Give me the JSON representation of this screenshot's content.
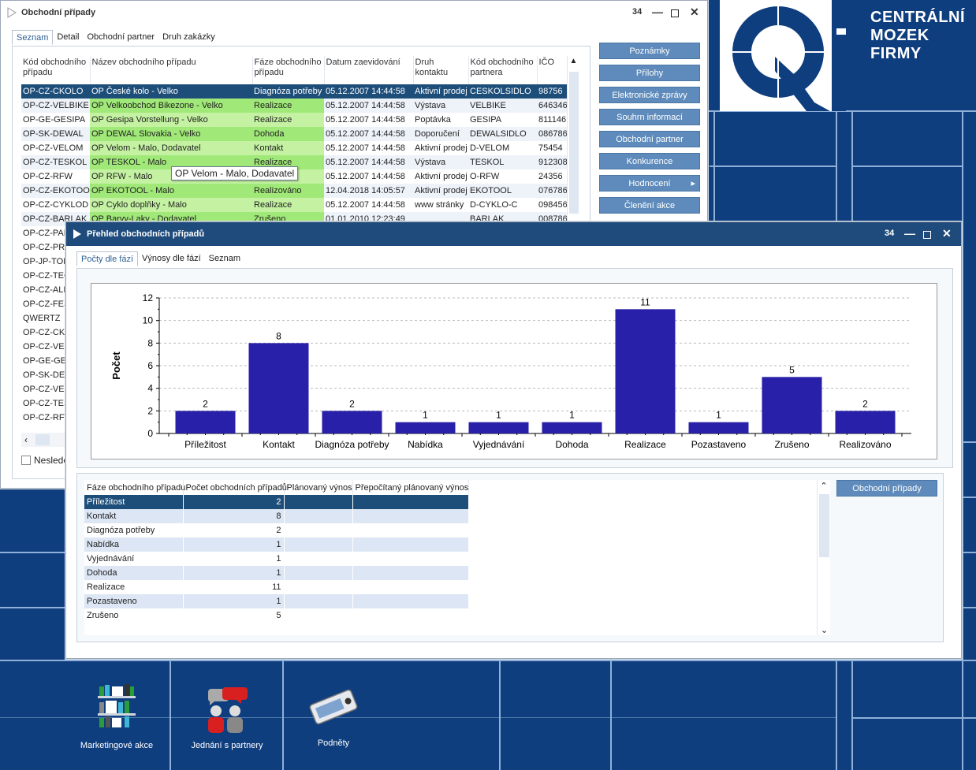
{
  "brand": {
    "line1": "CENTRÁLNÍ",
    "line2": "MOZEK",
    "line3": "FIRMY"
  },
  "win1": {
    "title": "Obchodní případy",
    "counter": "34",
    "tabs": [
      "Seznam",
      "Detail",
      "Obchodní partner",
      "Druh zakázky"
    ],
    "columns": [
      "Kód obchodního případu",
      "Název obchodního případu",
      "Fáze obchodního případu",
      "Datum zaevidování",
      "Druh kontaktu",
      "Kód obchodního partnera",
      "IČO"
    ],
    "rows": [
      [
        "OP-CZ-CKOLO",
        "OP České kolo - Velko",
        "Diagnóza potřeby",
        "05.12.2007 14:44:58",
        "Aktivní prodej",
        "CESKOLSIDLO",
        "98756"
      ],
      [
        "OP-CZ-VELBIKE",
        "OP Velkoobchod Bikezone - Velko",
        "Realizace",
        "05.12.2007 14:44:58",
        "Výstava",
        "VELBIKE",
        "646346"
      ],
      [
        "OP-GE-GESIPA",
        "OP Gesipa Vorstellung - Velko",
        "Realizace",
        "05.12.2007 14:44:58",
        "Poptávka",
        "GESIPA",
        "811146"
      ],
      [
        "OP-SK-DEWAL",
        "OP DEWAL Slovakia - Velko",
        "Dohoda",
        "05.12.2007 14:44:58",
        "Doporučení",
        "DEWALSIDLO",
        "086786"
      ],
      [
        "OP-CZ-VELOM",
        "OP Velom - Malo, Dodavatel",
        "Kontakt",
        "05.12.2007 14:44:58",
        "Aktivní prodej",
        "D-VELOM",
        "75454"
      ],
      [
        "OP-CZ-TESKOL",
        "OP TESKOL - Malo",
        "Realizace",
        "05.12.2007 14:44:58",
        "Výstava",
        "TESKOL",
        "912308"
      ],
      [
        "OP-CZ-RFW",
        "OP RFW - Malo",
        "",
        "05.12.2007 14:44:58",
        "Aktivní prodej",
        "O-RFW",
        "24356"
      ],
      [
        "OP-CZ-EKOTOOL",
        "OP EKOTOOL - Malo",
        "Realizováno",
        "12.04.2018 14:05:57",
        "Aktivní prodej",
        "EKOTOOL",
        "076786"
      ],
      [
        "OP-CZ-CYKLOD",
        "OP Cyklo doplňky - Malo",
        "Realizace",
        "05.12.2007 14:44:58",
        "www stránky",
        "D-CYKLO-C",
        "098456"
      ],
      [
        "OP-CZ-BARLAK",
        "OP Barvy-Laky - Dodavatel",
        "Zrušeno",
        "01.01.2010 12:23:49",
        "",
        "BARLAK",
        "008786"
      ]
    ],
    "hidden_codes": [
      "OP-CZ-PAP",
      "OP-CZ-PRO",
      "OP-JP-TOM",
      "OP-CZ-TEC",
      "OP-CZ-ALK",
      "OP-CZ-FES",
      "QWERTZ",
      "OP-CZ-CKO",
      "OP-CZ-VELE",
      "OP-GE-GES",
      "OP-SK-DEW",
      "OP-CZ-VELO",
      "OP-CZ-TESI",
      "OP-CZ-RFW"
    ],
    "tooltip": "OP Velom - Malo, Dodavatel",
    "checkbox_label": "Nesledov",
    "buttons": [
      "Poznámky",
      "Přílohy",
      "Elektronické zprávy",
      "Souhrn informací",
      "Obchodní partner",
      "Konkurence",
      "Hodnocení",
      "Členění akce"
    ]
  },
  "win2": {
    "title": "Přehled obchodních případů",
    "counter": "34",
    "tabs": [
      "Počty dle fází",
      "Výnosy dle fází",
      "Seznam"
    ],
    "summary_columns": [
      "Fáze obchodního případu",
      "Počet obchodních případů",
      "Plánovaný výnos",
      "Přepočítaný plánovaný výnos"
    ],
    "summary_button": "Obchodní případy"
  },
  "chart_data": {
    "type": "bar",
    "categories": [
      "Příležitost",
      "Kontakt",
      "Diagnóza potřeby",
      "Nabídka",
      "Vyjednávání",
      "Dohoda",
      "Realizace",
      "Pozastaveno",
      "Zrušeno",
      "Realizováno"
    ],
    "values": [
      2,
      8,
      2,
      1,
      1,
      1,
      11,
      1,
      5,
      2
    ],
    "ylabel": "Počet",
    "xlabel": "",
    "title": "",
    "ylim": [
      0,
      12
    ],
    "yticks": [
      0,
      2,
      4,
      6,
      8,
      10,
      12
    ],
    "bar_color": "#2820a8",
    "grid": true
  },
  "desktop": {
    "icons": [
      "Marketingové akce",
      "Jednání s partnery",
      "Podněty"
    ]
  }
}
